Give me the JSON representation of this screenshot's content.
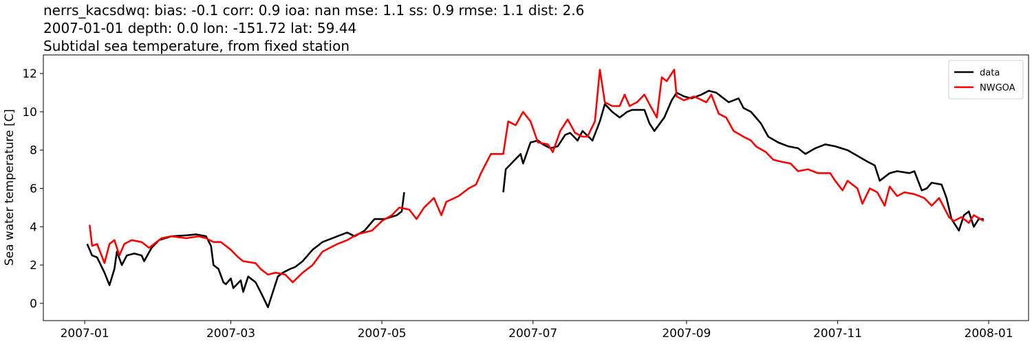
{
  "chart_data": {
    "type": "line",
    "title": "nerrs_kacsdwq: bias: -0.1  corr: 0.9  ioa: nan  mse: 1.1  ss: 0.9  rmse: 1.1  dist: 2.6",
    "subtitle": "2007-01-01 depth: 0.0 lon: -151.72 lat: 59.44",
    "description": "Subtidal sea temperature, from fixed station",
    "ylabel": "Sea water temperature [C]",
    "xlim": [
      -16.7,
      381.1
    ],
    "xticks": [
      {
        "value": 0,
        "label": "2007-01"
      },
      {
        "value": 59,
        "label": "2007-03"
      },
      {
        "value": 120,
        "label": "2007-05"
      },
      {
        "value": 181,
        "label": "2007-07"
      },
      {
        "value": 243,
        "label": "2007-09"
      },
      {
        "value": 304,
        "label": "2007-11"
      },
      {
        "value": 365,
        "label": "2008-01"
      }
    ],
    "ylim": [
      -0.9,
      12.97
    ],
    "yticks": [
      0,
      2,
      4,
      6,
      8,
      10,
      12
    ],
    "legend": "upper right",
    "series": [
      {
        "name": "data",
        "color": "#000000",
        "x": [
          1,
          3,
          5,
          8,
          10,
          12,
          13,
          15,
          17,
          20,
          23,
          24,
          27,
          30,
          35,
          41,
          45,
          49,
          51,
          52,
          54,
          56,
          57,
          59,
          60,
          63,
          64,
          66,
          69,
          71,
          74,
          76,
          78,
          80,
          83,
          85,
          88,
          92,
          96,
          102,
          106,
          109,
          113,
          117,
          121,
          126,
          128,
          129,
          150,
          169,
          170,
          173,
          176,
          177,
          180,
          183,
          185,
          188,
          191,
          194,
          196,
          199,
          201,
          205,
          208,
          210,
          213,
          216,
          219,
          221,
          226,
          228,
          230,
          234,
          237,
          239,
          242,
          245,
          249,
          252,
          255,
          258,
          260,
          264,
          266,
          269,
          273,
          276,
          280,
          284,
          288,
          291,
          295,
          299,
          303,
          308,
          312,
          316,
          319,
          321,
          325,
          328,
          333,
          335,
          338,
          340,
          342,
          346,
          348,
          350,
          352,
          353,
          355,
          357,
          359,
          361,
          363
        ],
        "values": [
          3.1,
          2.5,
          2.4,
          1.6,
          0.95,
          1.8,
          2.7,
          2.0,
          2.5,
          2.6,
          2.5,
          2.2,
          2.9,
          3.3,
          3.5,
          3.55,
          3.6,
          3.5,
          3.0,
          2.0,
          1.8,
          1.1,
          1.0,
          1.3,
          0.8,
          1.2,
          0.6,
          1.4,
          1.1,
          0.6,
          -0.2,
          0.6,
          1.4,
          1.6,
          1.8,
          1.9,
          2.2,
          2.8,
          3.2,
          3.5,
          3.7,
          3.5,
          3.8,
          4.4,
          4.4,
          4.6,
          4.8,
          5.8,
          null,
          5.8,
          7.0,
          7.4,
          7.8,
          7.3,
          8.4,
          8.5,
          8.3,
          8.1,
          8.2,
          8.8,
          8.9,
          8.5,
          9.0,
          8.5,
          9.5,
          10.4,
          10.0,
          9.7,
          10.0,
          10.1,
          10.1,
          9.4,
          9.0,
          9.7,
          10.6,
          11.0,
          10.8,
          10.7,
          10.9,
          11.1,
          11.0,
          10.7,
          10.5,
          10.7,
          10.2,
          10.0,
          9.4,
          8.7,
          8.4,
          8.2,
          8.1,
          7.8,
          8.1,
          8.3,
          8.2,
          8.0,
          7.7,
          7.4,
          7.2,
          6.4,
          6.8,
          6.9,
          6.8,
          6.9,
          5.9,
          6.0,
          6.3,
          6.2,
          5.5,
          4.4,
          4.0,
          3.8,
          4.6,
          4.8,
          4.0,
          4.4,
          4.4
        ]
      },
      {
        "name": "NWGOA",
        "color": "#ff0000",
        "x": [
          2,
          3,
          5,
          8,
          10,
          12,
          14,
          16,
          19,
          23,
          26,
          28,
          31,
          35,
          41,
          46,
          49,
          52,
          55,
          59,
          62,
          64,
          69,
          71,
          74,
          77,
          81,
          84,
          88,
          92,
          96,
          102,
          106,
          110,
          116,
          120,
          124,
          127,
          131,
          134,
          137,
          141,
          144,
          146,
          151,
          155,
          158,
          160,
          164,
          169,
          171,
          174,
          177,
          180,
          183,
          187,
          189,
          192,
          195,
          198,
          201,
          203,
          206,
          208,
          210,
          213,
          216,
          218,
          220,
          223,
          226,
          228,
          231,
          233,
          235,
          238,
          239,
          242,
          246,
          251,
          253,
          256,
          259,
          262,
          266,
          269,
          271,
          275,
          278,
          281,
          285,
          288,
          292,
          296,
          301,
          303,
          306,
          308,
          312,
          314,
          317,
          320,
          323,
          325,
          328,
          331,
          335,
          339,
          342,
          345,
          349,
          351,
          354,
          357,
          359,
          363
        ],
        "values": [
          4.1,
          3.0,
          3.1,
          2.1,
          3.1,
          3.3,
          2.5,
          3.1,
          3.3,
          3.2,
          2.9,
          3.1,
          3.4,
          3.5,
          3.4,
          3.5,
          3.4,
          3.2,
          3.2,
          2.8,
          2.4,
          2.2,
          2.1,
          1.8,
          1.5,
          1.6,
          1.5,
          1.1,
          1.6,
          2.0,
          2.7,
          3.1,
          3.3,
          3.6,
          3.8,
          4.3,
          4.6,
          5.0,
          4.9,
          4.4,
          5.0,
          5.5,
          4.6,
          5.3,
          5.6,
          6.0,
          6.2,
          6.8,
          7.8,
          7.8,
          9.5,
          9.3,
          10.0,
          9.5,
          8.4,
          8.3,
          7.9,
          9.0,
          9.6,
          8.9,
          8.7,
          8.7,
          9.5,
          12.2,
          10.5,
          10.3,
          10.3,
          10.9,
          10.3,
          10.5,
          10.9,
          10.4,
          9.7,
          11.8,
          11.6,
          12.2,
          10.8,
          10.6,
          10.8,
          10.5,
          10.9,
          9.9,
          9.7,
          9.0,
          8.7,
          8.5,
          8.2,
          7.9,
          7.5,
          7.4,
          7.3,
          6.9,
          7.0,
          6.8,
          6.8,
          6.4,
          5.9,
          6.4,
          6.0,
          5.2,
          6.0,
          5.8,
          5.1,
          6.1,
          5.6,
          5.8,
          5.7,
          5.5,
          5.1,
          5.5,
          4.5,
          4.3,
          4.5,
          4.2,
          4.6,
          4.3
        ]
      }
    ]
  }
}
